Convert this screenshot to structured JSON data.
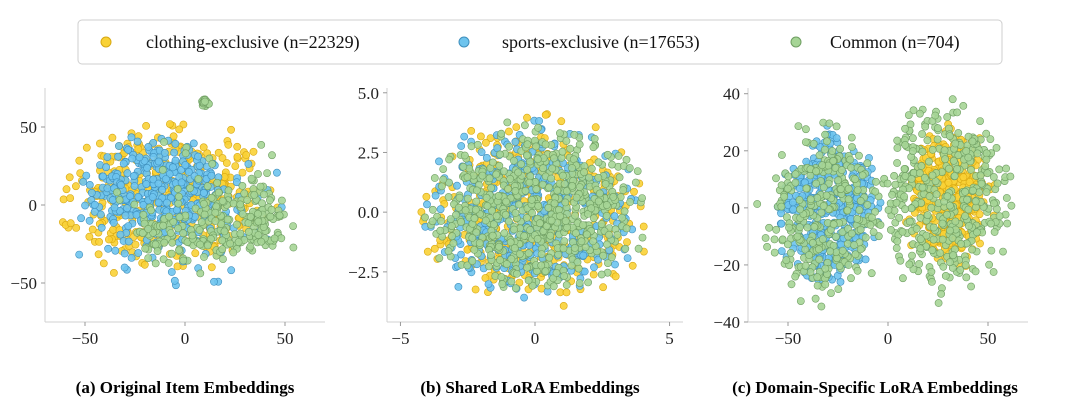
{
  "legend": {
    "items": [
      {
        "label": "clothing-exclusive (n=22329)",
        "color": "#f9d236",
        "edge": "#d8a812"
      },
      {
        "label": "sports-exclusive (n=17653)",
        "color": "#6ec4ee",
        "edge": "#3f8fbd"
      },
      {
        "label": "Common (n=704)",
        "color": "#a6d596",
        "edge": "#6f9e62"
      }
    ]
  },
  "chart_data": [
    {
      "type": "scatter",
      "title": "(a) Original Item Embeddings",
      "xlim": [
        -70,
        70
      ],
      "ylim": [
        -75,
        75
      ],
      "xticks": [
        -50,
        0,
        50
      ],
      "xtick_labels": [
        "−50",
        "0",
        "50"
      ],
      "yticks": [
        -50,
        0,
        50
      ],
      "ytick_labels": [
        "−50",
        "0",
        "50"
      ],
      "grid": false,
      "series": [
        {
          "name": "clothing-exclusive (n=22329)",
          "color": "#f9d236",
          "edge": "#d8a812",
          "n": 380,
          "seed": 11,
          "clusters": [
            {
              "cx": -10,
              "cy": 5,
              "rx": 58,
              "ry": 56,
              "w": 1
            }
          ]
        },
        {
          "name": "sports-exclusive (n=17653)",
          "color": "#6ec4ee",
          "edge": "#3f8fbd",
          "n": 430,
          "seed": 23,
          "clusters": [
            {
              "cx": -15,
              "cy": 10,
              "rx": 38,
              "ry": 40,
              "w": 0.75
            },
            {
              "cx": -5,
              "cy": -5,
              "rx": 60,
              "ry": 55,
              "w": 0.25
            }
          ]
        },
        {
          "name": "Common (n=704)",
          "color": "#a6d596",
          "edge": "#6f9e62",
          "n": 300,
          "seed": 37,
          "clusters": [
            {
              "cx": 25,
              "cy": -10,
              "rx": 30,
              "ry": 28,
              "w": 0.55
            },
            {
              "cx": -10,
              "cy": -20,
              "rx": 20,
              "ry": 20,
              "w": 0.2
            },
            {
              "cx": 10,
              "cy": 0,
              "rx": 55,
              "ry": 55,
              "w": 0.18
            },
            {
              "cx": 10,
              "cy": 66,
              "rx": 3,
              "ry": 3,
              "w": 0.07
            }
          ]
        }
      ]
    },
    {
      "type": "scatter",
      "title": "(b) Shared LoRA Embeddings",
      "xlim": [
        -5.5,
        5.5
      ],
      "ylim": [
        -4.6,
        5.2
      ],
      "xticks": [
        -5,
        0,
        5
      ],
      "xtick_labels": [
        "−5",
        "0",
        "5"
      ],
      "yticks": [
        -2.5,
        0.0,
        2.5,
        5.0
      ],
      "ytick_labels": [
        "−2.5",
        "0.0",
        "2.5",
        "5.0"
      ],
      "grid": false,
      "series": [
        {
          "name": "clothing-exclusive (n=22329)",
          "color": "#f9d236",
          "edge": "#d8a812",
          "n": 420,
          "seed": 41,
          "clusters": [
            {
              "cx": 0,
              "cy": 0,
              "rx": 4.6,
              "ry": 4.2,
              "w": 1
            }
          ]
        },
        {
          "name": "sports-exclusive (n=17653)",
          "color": "#6ec4ee",
          "edge": "#3f8fbd",
          "n": 420,
          "seed": 53,
          "clusters": [
            {
              "cx": 0,
              "cy": 0,
              "rx": 4.6,
              "ry": 4.2,
              "w": 1
            }
          ]
        },
        {
          "name": "Common (n=704)",
          "color": "#a6d596",
          "edge": "#6f9e62",
          "n": 650,
          "seed": 67,
          "clusters": [
            {
              "cx": 0,
              "cy": 0,
              "rx": 4.4,
              "ry": 4.0,
              "w": 1
            }
          ]
        }
      ]
    },
    {
      "type": "scatter",
      "title": "(c) Domain-Specific LoRA Embeddings",
      "xlim": [
        -70,
        70
      ],
      "ylim": [
        -40,
        42
      ],
      "xticks": [
        -50,
        0,
        50
      ],
      "xtick_labels": [
        "−50",
        "0",
        "50"
      ],
      "yticks": [
        -40,
        -20,
        0,
        20,
        40
      ],
      "ytick_labels": [
        "−40",
        "−20",
        "0",
        "20",
        "40"
      ],
      "grid": false,
      "series": [
        {
          "name": "sports-exclusive (n=17653)",
          "color": "#6ec4ee",
          "edge": "#3f8fbd",
          "n": 420,
          "seed": 71,
          "clusters": [
            {
              "cx": -30,
              "cy": 0,
              "rx": 28,
              "ry": 30,
              "w": 1
            }
          ]
        },
        {
          "name": "clothing-exclusive (n=22329)",
          "color": "#f9d236",
          "edge": "#d8a812",
          "n": 420,
          "seed": 83,
          "clusters": [
            {
              "cx": 30,
              "cy": 5,
              "rx": 25,
              "ry": 28,
              "w": 1
            }
          ]
        },
        {
          "name": "Common (n=704)",
          "color": "#a6d596",
          "edge": "#6f9e62",
          "n": 700,
          "seed": 97,
          "clusters": [
            {
              "cx": -32,
              "cy": -2,
              "rx": 34,
              "ry": 35,
              "w": 0.45
            },
            {
              "cx": 28,
              "cy": 3,
              "rx": 38,
              "ry": 38,
              "w": 0.55
            }
          ]
        }
      ]
    }
  ]
}
